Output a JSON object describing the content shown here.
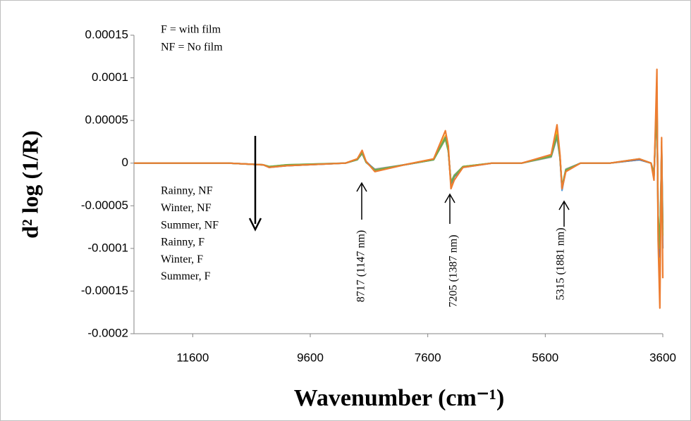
{
  "chart_data": {
    "type": "line",
    "x_label": "Wavenumber (cm⁻¹)",
    "y_label": "d² log (1/R)",
    "annotations": [
      "F = with film",
      "NF = No film",
      "8717 (1147 nm)",
      "7205 (1387 nm)",
      "5315 (1881 nm)"
    ],
    "xlim": [
      12600,
      3600
    ],
    "xticks": [
      11600,
      9600,
      7600,
      5600,
      3600
    ],
    "ylim": [
      -0.0002,
      0.00015
    ],
    "yticks": [
      0.00015,
      0.0001,
      5e-05,
      0,
      -5e-05,
      -0.0001,
      -0.00015,
      -0.0002
    ],
    "legend": "left",
    "x": [
      12600,
      12000,
      11000,
      10400,
      10300,
      10000,
      9000,
      8800,
      8717,
      8650,
      8500,
      8000,
      7500,
      7300,
      7250,
      7205,
      7150,
      7000,
      6500,
      6000,
      5500,
      5400,
      5350,
      5315,
      5250,
      5000,
      4500,
      4000,
      3800,
      3750,
      3700,
      3680,
      3650,
      3620,
      3600
    ],
    "series": [
      {
        "name": "Rainny, NF",
        "color": "#5b9bd5",
        "values": [
          0,
          0,
          0,
          -2e-06,
          -4e-06,
          -3e-06,
          0,
          4e-06,
          1.2e-05,
          1e-06,
          -8e-06,
          -2e-06,
          4e-06,
          3e-05,
          1.5e-05,
          -2.5e-05,
          -1.5e-05,
          -4e-06,
          0,
          0,
          8e-06,
          3.5e-05,
          8e-06,
          -3.2e-05,
          -8e-06,
          0,
          0,
          4e-06,
          0,
          -1.5e-05,
          8e-05,
          -7e-05,
          -0.00012,
          2e-05,
          -7.8e-05
        ]
      },
      {
        "name": "Winter, NF",
        "color": "#a5a5a5",
        "values": [
          0,
          0,
          0,
          -2e-06,
          -4e-06,
          -2e-06,
          0,
          4e-06,
          1.1e-05,
          1e-06,
          -7e-06,
          -2e-06,
          4e-06,
          2.8e-05,
          1.4e-05,
          -2.2e-05,
          -1.4e-05,
          -4e-06,
          0,
          0,
          7e-06,
          3e-05,
          6e-06,
          -2.8e-05,
          -7e-06,
          0,
          0,
          4e-06,
          0,
          -1.2e-05,
          7e-05,
          -6e-05,
          -0.0001,
          1.5e-05,
          -7e-05
        ]
      },
      {
        "name": "Summer, NF",
        "color": "#ffc000",
        "values": [
          0,
          0,
          0,
          -2e-06,
          -4e-06,
          -3e-06,
          0,
          5e-06,
          1.3e-05,
          2e-06,
          -9e-06,
          -2e-06,
          5e-06,
          3.2e-05,
          1.6e-05,
          -2.6e-05,
          -1.6e-05,
          -4e-06,
          0,
          0,
          9e-06,
          3.8e-05,
          8e-06,
          -2.8e-05,
          -9e-06,
          0,
          0,
          4e-06,
          0,
          -1.6e-05,
          9e-05,
          -8e-05,
          -0.00013,
          2.5e-05,
          -0.0001
        ]
      },
      {
        "name": "Rainny, F",
        "color": "#4472c4",
        "values": [
          0,
          0,
          0,
          -2e-06,
          -5e-06,
          -3e-06,
          0,
          4e-06,
          1.2e-05,
          2e-06,
          -8e-06,
          -2e-06,
          4e-06,
          3e-05,
          1.5e-05,
          -2.4e-05,
          -1.6e-05,
          -5e-06,
          0,
          0,
          8e-06,
          3.2e-05,
          7e-06,
          -3e-05,
          -8e-06,
          0,
          0,
          4e-06,
          0,
          -1.4e-05,
          7.5e-05,
          -6.5e-05,
          -0.00011,
          2e-05,
          -0.0001
        ]
      },
      {
        "name": "Winter, F",
        "color": "#70ad47",
        "values": [
          0,
          0,
          0,
          -2e-06,
          -4e-06,
          -2e-06,
          0,
          4e-06,
          1.2e-05,
          1e-06,
          -8e-06,
          -2e-06,
          4e-06,
          2.9e-05,
          1.4e-05,
          -2.3e-05,
          -1.5e-05,
          -4e-06,
          0,
          0,
          8e-06,
          3.3e-05,
          7e-06,
          -2.7e-05,
          -8e-06,
          0,
          0,
          5e-06,
          0,
          -1.3e-05,
          7e-05,
          -6e-05,
          -0.0001,
          1.5e-05,
          -8.5e-05
        ]
      },
      {
        "name": "Summer, F",
        "color": "#ed7d31",
        "values": [
          0,
          0,
          0,
          -2e-06,
          -5e-06,
          -3e-06,
          0,
          5e-06,
          1.5e-05,
          2e-06,
          -1e-05,
          -2e-06,
          5e-06,
          3.8e-05,
          2e-05,
          -3e-05,
          -2e-05,
          -5e-06,
          0,
          0,
          1e-05,
          4.5e-05,
          1e-05,
          -3e-05,
          -1e-05,
          0,
          0,
          5e-06,
          0,
          -2e-05,
          0.00011,
          -9e-05,
          -0.00017,
          3e-05,
          -0.000135
        ]
      }
    ]
  }
}
